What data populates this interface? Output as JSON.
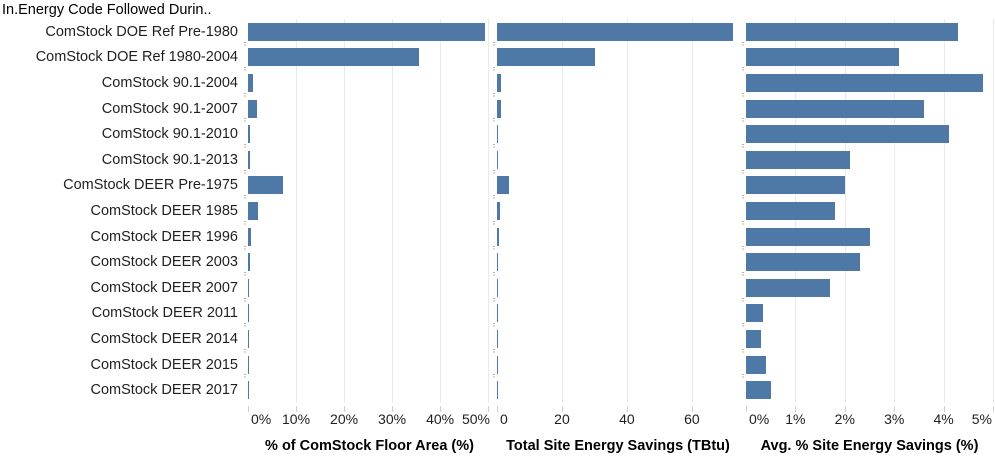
{
  "header": {
    "row_field_label": "In.Energy Code Followed Durin.."
  },
  "colors": {
    "bar": "#4e79a7",
    "gridline": "#e9e9e9",
    "tick": "#cfcfcf",
    "text": "#1f1f1f"
  },
  "chart_data": {
    "type": "bar",
    "orientation": "horizontal",
    "grid": true,
    "categories": [
      "ComStock DOE Ref Pre-1980",
      "ComStock DOE Ref 1980-2004",
      "ComStock 90.1-2004",
      "ComStock 90.1-2007",
      "ComStock 90.1-2010",
      "ComStock 90.1-2013",
      "ComStock DEER Pre-1975",
      "ComStock DEER 1985",
      "ComStock DEER 1996",
      "ComStock DEER 2003",
      "ComStock DEER 2007",
      "ComStock DEER 2011",
      "ComStock DEER 2014",
      "ComStock DEER 2015",
      "ComStock DEER 2017"
    ],
    "panels": [
      {
        "title": "% of ComStock Floor Area (%)",
        "unit": "%",
        "axis_max": 50.6,
        "tick_values": [
          0,
          10,
          20,
          30,
          40,
          50
        ],
        "tick_labels": [
          "0%",
          "10%",
          "20%",
          "30%",
          "40%",
          "50%"
        ],
        "values": [
          49.3,
          35.6,
          1.1,
          1.9,
          0.4,
          0.4,
          7.3,
          2.0,
          0.7,
          0.4,
          0.2,
          0.15,
          0.15,
          0.2,
          0.2
        ]
      },
      {
        "title": "Total Site Energy Savings (TBtu)",
        "unit": "TBtu",
        "axis_max": 74.5,
        "tick_values": [
          0,
          20,
          40,
          60
        ],
        "tick_labels": [
          "0",
          "20",
          "40",
          "60"
        ],
        "values": [
          72.7,
          30.3,
          1.2,
          1.2,
          0.4,
          0.4,
          3.8,
          0.8,
          0.6,
          0.3,
          0.2,
          0.1,
          0.1,
          0.15,
          0.2
        ]
      },
      {
        "title": "Avg. % Site Energy Savings (%)",
        "unit": "%",
        "axis_max": 5.0,
        "tick_values": [
          0,
          1,
          2,
          3,
          4,
          5
        ],
        "tick_labels": [
          "0%",
          "1%",
          "2%",
          "3%",
          "4%",
          "5%"
        ],
        "values": [
          4.3,
          3.1,
          4.8,
          3.6,
          4.1,
          2.1,
          2.0,
          1.8,
          2.5,
          2.3,
          1.7,
          0.35,
          0.3,
          0.4,
          0.5
        ]
      }
    ]
  }
}
